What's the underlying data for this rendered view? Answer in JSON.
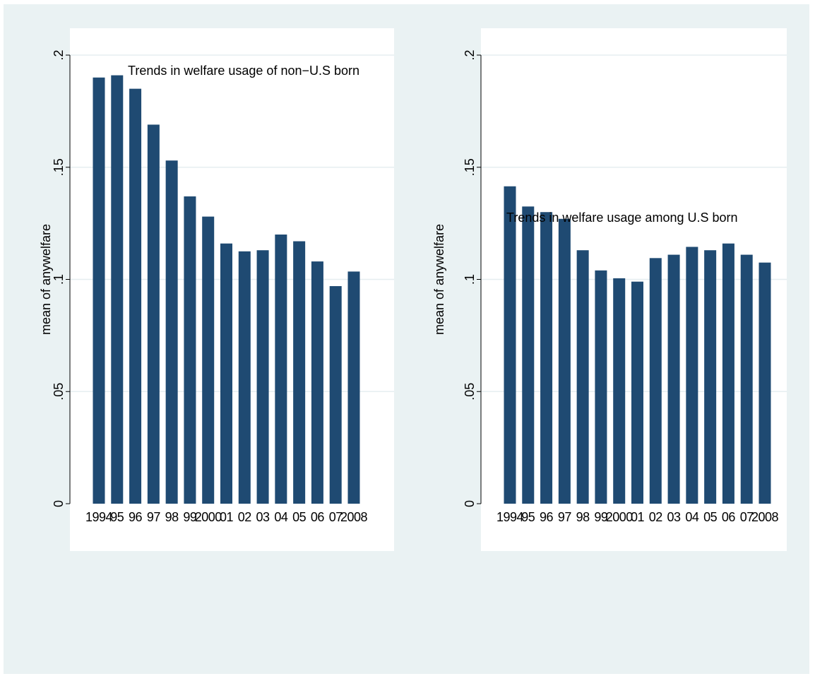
{
  "colors": {
    "background": "#eaf2f3",
    "plot_background": "#ffffff",
    "bar": "#1f4a72",
    "grid": "#e6eef0"
  },
  "chart_data": [
    {
      "type": "bar",
      "annotation": "Trends in welfare usage of non−U.S born",
      "ylabel": "mean of anywelfare",
      "xlabel": "",
      "categories": [
        "1994",
        "95",
        "96",
        "97",
        "98",
        "99",
        "2000",
        "01",
        "02",
        "03",
        "04",
        "05",
        "06",
        "07",
        "2008"
      ],
      "values": [
        0.19,
        0.191,
        0.185,
        0.169,
        0.153,
        0.137,
        0.128,
        0.116,
        0.1125,
        0.113,
        0.12,
        0.117,
        0.108,
        0.097,
        0.1035
      ],
      "ylim": [
        0,
        0.2
      ],
      "yticks": [
        0,
        0.05,
        0.1,
        0.15,
        0.2
      ],
      "ytick_labels": [
        "0",
        ".05",
        ".1",
        ".15",
        ".2"
      ],
      "grid": true
    },
    {
      "type": "bar",
      "annotation": "Trends in welfare usage among U.S born",
      "ylabel": "mean of anywelfare",
      "xlabel": "",
      "categories": [
        "1994",
        "95",
        "96",
        "97",
        "98",
        "99",
        "2000",
        "01",
        "02",
        "03",
        "04",
        "05",
        "06",
        "07",
        "2008"
      ],
      "values": [
        0.1415,
        0.1325,
        0.13,
        0.127,
        0.113,
        0.104,
        0.1005,
        0.099,
        0.1095,
        0.111,
        0.1145,
        0.113,
        0.116,
        0.111,
        0.1075
      ],
      "ylim": [
        0,
        0.2
      ],
      "yticks": [
        0,
        0.05,
        0.1,
        0.15,
        0.2
      ],
      "ytick_labels": [
        "0",
        ".05",
        ".1",
        ".15",
        ".2"
      ],
      "grid": true
    }
  ]
}
